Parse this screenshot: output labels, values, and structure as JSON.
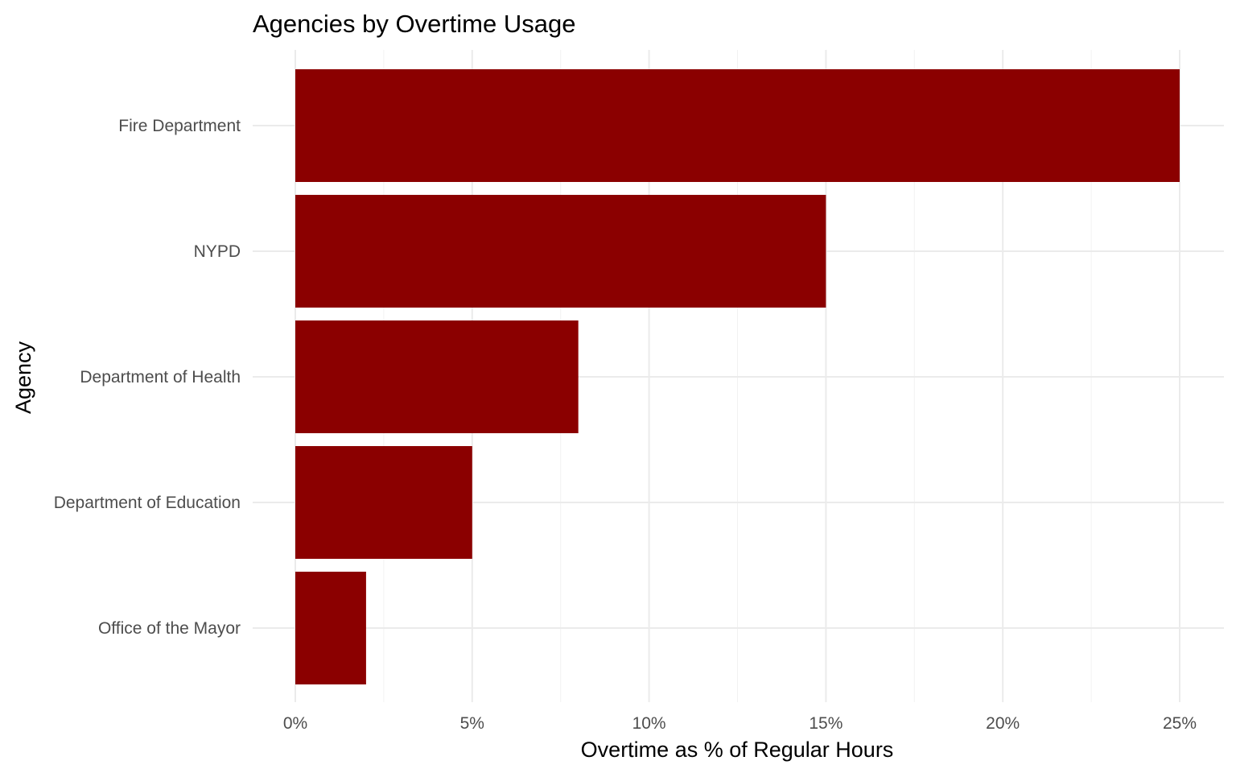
{
  "chart_data": {
    "type": "bar",
    "orientation": "horizontal",
    "title": "Agencies by Overtime Usage",
    "xlabel": "Overtime as % of Regular Hours",
    "ylabel": "Agency",
    "categories": [
      "Fire Department",
      "NYPD",
      "Department of Health",
      "Department of Education",
      "Office of the Mayor"
    ],
    "values": [
      25,
      15,
      8,
      5,
      2
    ],
    "xlim": [
      0,
      25
    ],
    "x_ticks": [
      0,
      5,
      10,
      15,
      20,
      25
    ],
    "x_tick_labels": [
      "0%",
      "5%",
      "10%",
      "15%",
      "20%",
      "25%"
    ],
    "bar_color": "#8b0000",
    "grid": true,
    "legend": "none"
  }
}
